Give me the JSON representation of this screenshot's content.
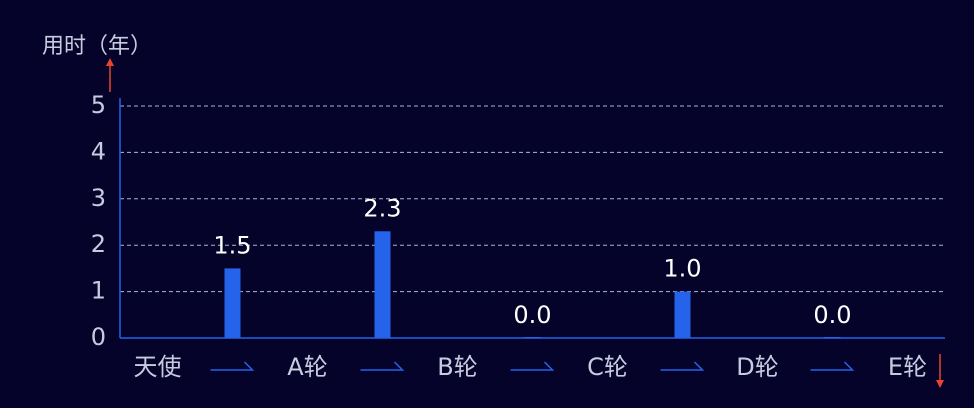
{
  "chart_data": {
    "type": "bar",
    "y_label": "用时（年）",
    "categories": [
      "天使",
      null,
      "A轮",
      null,
      "B轮",
      null,
      "C轮",
      null,
      "D轮",
      null,
      "E轮"
    ],
    "values": [
      null,
      1.5,
      null,
      2.3,
      null,
      0,
      null,
      1,
      null,
      0,
      null
    ],
    "value_labels": [
      null,
      "1.5",
      null,
      "2.3",
      null,
      "0.0",
      null,
      "1.0",
      null,
      "0.0",
      null
    ],
    "color": "#2563eb",
    "ylim": [
      0,
      5
    ],
    "yticks": [
      0,
      1,
      2,
      3,
      4,
      5
    ],
    "grid": true
  }
}
